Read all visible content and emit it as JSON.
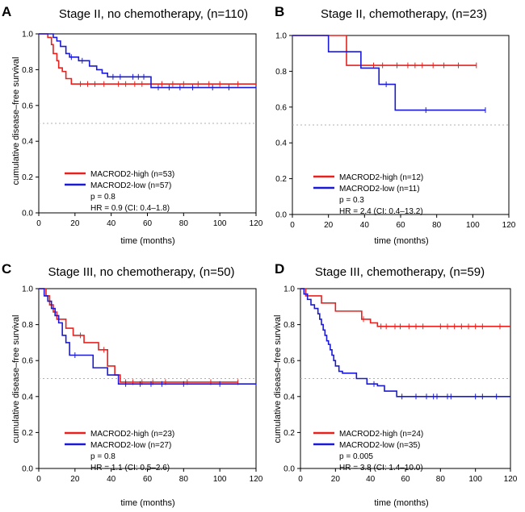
{
  "colors": {
    "high": "#e8201e",
    "low": "#1a1ad6",
    "ref": "#b0b0b0",
    "axis": "#000000"
  },
  "chart_data": [
    {
      "type": "line",
      "panel_letter": "A",
      "title": "Stage II, no chemotherapy, (n=110)",
      "xlabel": "time (months)",
      "ylabel": "cumulative disease–free survival",
      "xlim": [
        0,
        120
      ],
      "ylim": [
        0,
        1
      ],
      "xticks": [
        "0",
        "20",
        "40",
        "60",
        "80",
        "100",
        "120"
      ],
      "yticks": [
        "0.0",
        "0.2",
        "0.4",
        "0.6",
        "0.8",
        "1.0"
      ],
      "reference_line": 0.5,
      "series": [
        {
          "name": "MACROD2-high (n=53)",
          "color_key": "high",
          "x": [
            0,
            5,
            7,
            8,
            10,
            11,
            13,
            15,
            18,
            22,
            120
          ],
          "y": [
            1.0,
            0.98,
            0.94,
            0.89,
            0.85,
            0.81,
            0.79,
            0.75,
            0.72,
            0.72,
            0.72
          ],
          "censor_x": [
            23,
            27,
            31,
            36,
            44,
            48,
            53,
            57,
            62,
            68,
            74,
            80,
            88,
            94,
            100,
            110
          ]
        },
        {
          "name": "MACROD2-low (n=57)",
          "color_key": "low",
          "x": [
            0,
            8,
            10,
            12,
            15,
            17,
            20,
            22,
            28,
            30,
            32,
            35,
            38,
            62,
            120
          ],
          "y": [
            1.0,
            0.98,
            0.96,
            0.93,
            0.89,
            0.87,
            0.87,
            0.85,
            0.82,
            0.82,
            0.8,
            0.78,
            0.76,
            0.7,
            0.7
          ],
          "censor_x": [
            18,
            24,
            41,
            45,
            52,
            55,
            58,
            66,
            72,
            78,
            85,
            96,
            105
          ]
        }
      ],
      "stats": {
        "p": "p = 0.8",
        "hr": "HR =  0.9 (CI: 0.4–1.8)"
      }
    },
    {
      "type": "line",
      "panel_letter": "B",
      "title": "Stage II, chemotherapy, (n=23)",
      "xlabel": "time (months)",
      "ylabel": "cumulative disease–free survival",
      "xlim": [
        0,
        120
      ],
      "ylim": [
        0,
        1
      ],
      "xticks": [
        "0",
        "20",
        "40",
        "60",
        "80",
        "100",
        "120"
      ],
      "yticks": [
        "0.0",
        "0.2",
        "0.4",
        "0.6",
        "0.8",
        "1.0"
      ],
      "reference_line": 0.5,
      "series": [
        {
          "name": "MACROD2-high (n=12)",
          "color_key": "high",
          "x": [
            0,
            30,
            102
          ],
          "y": [
            1.0,
            0.833,
            0.833
          ],
          "censor_x": [
            45,
            50,
            58,
            64,
            68,
            72,
            78,
            84,
            92,
            102
          ]
        },
        {
          "name": "MACROD2-low (n=11)",
          "color_key": "low",
          "x": [
            0,
            20,
            38,
            48,
            57,
            107
          ],
          "y": [
            1.0,
            0.909,
            0.818,
            0.727,
            0.583,
            0.583
          ],
          "censor_x": [
            52,
            74,
            107
          ]
        }
      ],
      "stats": {
        "p": "p = 0.3",
        "hr": "HR =  2.4 (CI: 0.4–13.2)"
      }
    },
    {
      "type": "line",
      "panel_letter": "C",
      "title": "Stage III, no chemotherapy,  (n=50)",
      "xlabel": "time (months)",
      "ylabel": "cumulative disease–free survival",
      "xlim": [
        0,
        120
      ],
      "ylim": [
        0,
        1
      ],
      "xticks": [
        "0",
        "20",
        "40",
        "60",
        "80",
        "100",
        "120"
      ],
      "yticks": [
        "0.0",
        "0.2",
        "0.4",
        "0.6",
        "0.8",
        "1.0"
      ],
      "reference_line": 0.5,
      "series": [
        {
          "name": "MACROD2-high (n=23)",
          "color_key": "high",
          "x": [
            0,
            4,
            6,
            8,
            10,
            15,
            19,
            25,
            33,
            38,
            42,
            45,
            110
          ],
          "y": [
            1.0,
            0.96,
            0.91,
            0.87,
            0.83,
            0.78,
            0.74,
            0.7,
            0.66,
            0.57,
            0.52,
            0.48,
            0.48
          ],
          "censor_x": [
            23,
            36,
            48,
            52,
            57,
            63,
            70,
            82,
            95,
            110
          ]
        },
        {
          "name": "MACROD2-low (n=27)",
          "color_key": "low",
          "x": [
            0,
            3,
            5,
            7,
            9,
            11,
            13,
            15,
            17,
            25,
            30,
            38,
            42,
            44,
            120
          ],
          "y": [
            1.0,
            0.96,
            0.93,
            0.89,
            0.85,
            0.81,
            0.74,
            0.7,
            0.63,
            0.63,
            0.56,
            0.52,
            0.52,
            0.47,
            0.47
          ],
          "censor_x": [
            20,
            48,
            56,
            62,
            68,
            80,
            100
          ]
        }
      ],
      "stats": {
        "p": "p = 0.8",
        "hr": "HR =  1.1 (CI: 0.5–2.6)"
      }
    },
    {
      "type": "line",
      "panel_letter": "D",
      "title": "Stage III, chemotherapy, (n=59)",
      "xlabel": "time (months)",
      "ylabel": "cumulative disease–free survival",
      "xlim": [
        0,
        120
      ],
      "ylim": [
        0,
        1
      ],
      "xticks": [
        "0",
        "20",
        "40",
        "60",
        "80",
        "100",
        "120"
      ],
      "yticks": [
        "0.0",
        "0.2",
        "0.4",
        "0.6",
        "0.8",
        "1.0"
      ],
      "reference_line": 0.5,
      "series": [
        {
          "name": "MACROD2-high (n=24)",
          "color_key": "high",
          "x": [
            0,
            3,
            12,
            20,
            35,
            40,
            44,
            120
          ],
          "y": [
            1.0,
            0.96,
            0.92,
            0.875,
            0.83,
            0.81,
            0.79,
            0.79
          ],
          "censor_x": [
            36,
            46,
            49,
            54,
            57,
            62,
            66,
            70,
            80,
            84,
            88,
            92,
            96,
            100,
            104,
            114
          ]
        },
        {
          "name": "MACROD2-low (n=35)",
          "color_key": "low",
          "x": [
            0,
            2,
            4,
            6,
            8,
            10,
            11,
            12,
            13,
            14,
            15,
            16,
            17,
            18,
            19,
            20,
            22,
            24,
            32,
            38,
            44,
            48,
            55,
            120
          ],
          "y": [
            1.0,
            0.97,
            0.94,
            0.91,
            0.89,
            0.86,
            0.83,
            0.8,
            0.77,
            0.74,
            0.71,
            0.69,
            0.66,
            0.63,
            0.6,
            0.57,
            0.54,
            0.53,
            0.5,
            0.47,
            0.46,
            0.43,
            0.4,
            0.4
          ],
          "censor_x": [
            42,
            58,
            66,
            72,
            76,
            78,
            84,
            86,
            100,
            104,
            112
          ]
        }
      ],
      "stats": {
        "p": "p = 0.005",
        "hr": "HR =  3.8 (CI: 1.4–10.0)"
      }
    }
  ]
}
